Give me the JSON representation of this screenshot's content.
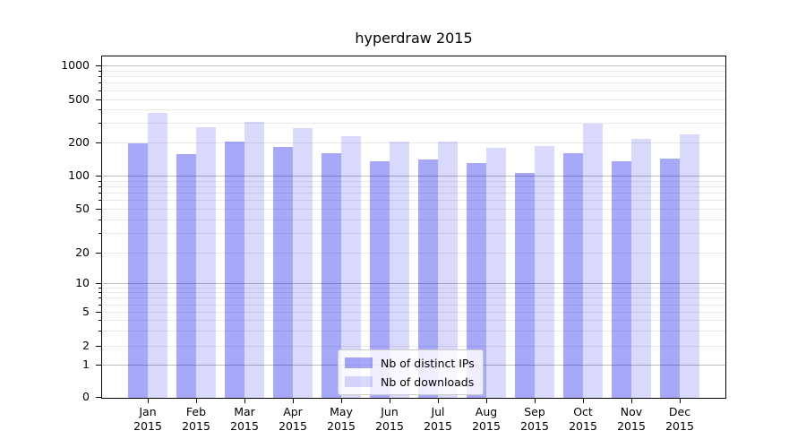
{
  "chart_data": {
    "type": "bar",
    "title": "hyperdraw 2015",
    "categories": [
      "Jan",
      "Feb",
      "Mar",
      "Apr",
      "May",
      "Jun",
      "Jul",
      "Aug",
      "Sep",
      "Oct",
      "Nov",
      "Dec"
    ],
    "category_year": "2015",
    "series": [
      {
        "name": "Nb of distinct IPs",
        "color": "rgba(0,0,235,0.34)",
        "values": [
          200,
          160,
          204,
          185,
          163,
          138,
          142,
          133,
          107,
          163,
          137,
          145
        ]
      },
      {
        "name": "Nb of downloads",
        "color": "rgba(0,0,235,0.15)",
        "values": [
          380,
          280,
          315,
          275,
          230,
          205,
          205,
          180,
          186,
          300,
          218,
          242
        ]
      }
    ],
    "xlabel": "",
    "ylabel": "",
    "ylim": [
      0,
      1200
    ],
    "grid": true,
    "legend": {
      "position": "lower center",
      "entries": [
        "Nb of distinct IPs",
        "Nb of downloads"
      ]
    },
    "yscale": {
      "type": "symlog",
      "anchors": [
        [
          0,
          0
        ],
        [
          1,
          0.0945
        ],
        [
          2,
          0.1496
        ],
        [
          5,
          0.2493
        ],
        [
          10,
          0.3333
        ],
        [
          20,
          0.4226
        ],
        [
          50,
          0.5512
        ],
        [
          100,
          0.6483
        ],
        [
          200,
          0.7467
        ],
        [
          500,
          0.8727
        ],
        [
          1000,
          0.9711
        ]
      ]
    },
    "yticks": [
      0,
      1,
      2,
      5,
      10,
      20,
      50,
      100,
      200,
      500,
      1000
    ],
    "major_gridlines": [
      1,
      10,
      100,
      1000
    ],
    "minor_gridlines": [
      2,
      3,
      4,
      5,
      6,
      7,
      8,
      9,
      20,
      30,
      40,
      50,
      60,
      70,
      80,
      90,
      200,
      300,
      400,
      500,
      600,
      700,
      800,
      900
    ],
    "colors": {
      "major_grid": "#bdbdbd",
      "minor_grid": "#e9e9e9",
      "spine": "#000000",
      "text": "#000000"
    }
  }
}
